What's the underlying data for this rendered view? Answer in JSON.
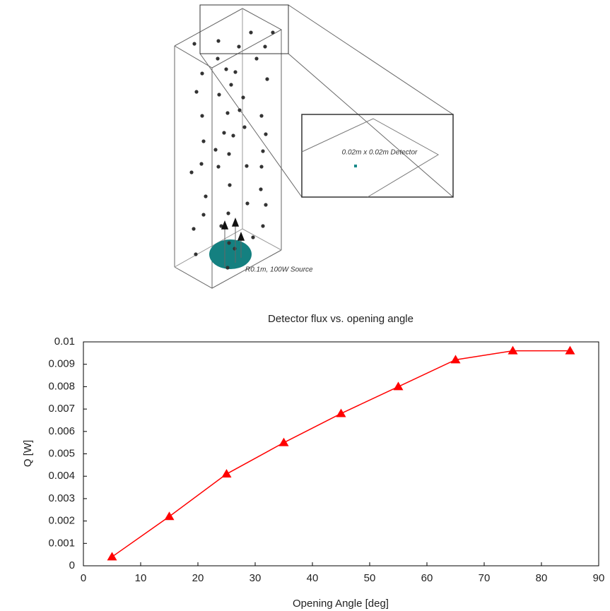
{
  "diagram": {
    "detector_label": "0.02m x 0.02m Detector",
    "source_label": "R0.1m, 100W Source"
  },
  "chart_data": {
    "type": "line",
    "title": "Detector flux vs. opening angle",
    "x_label": "Opening Angle [deg]",
    "y_label": "Q [W]",
    "x": [
      5,
      15,
      25,
      35,
      45,
      55,
      65,
      75,
      85
    ],
    "series": [
      {
        "name": null,
        "color": "#ff0000",
        "marker": "triangle",
        "values": [
          0.0004,
          0.0022,
          0.0041,
          0.0055,
          0.0068,
          0.008,
          0.0092,
          0.0096,
          0.0096
        ]
      }
    ],
    "xlim": [
      0,
      90
    ],
    "xticks": [
      0,
      10,
      20,
      30,
      40,
      50,
      60,
      70,
      80,
      90
    ],
    "ylim": [
      0,
      0.01
    ],
    "yticks": [
      0,
      0.001,
      0.002,
      0.003,
      0.004,
      0.005,
      0.006,
      0.007,
      0.008,
      0.009,
      0.01
    ],
    "grid": false
  }
}
